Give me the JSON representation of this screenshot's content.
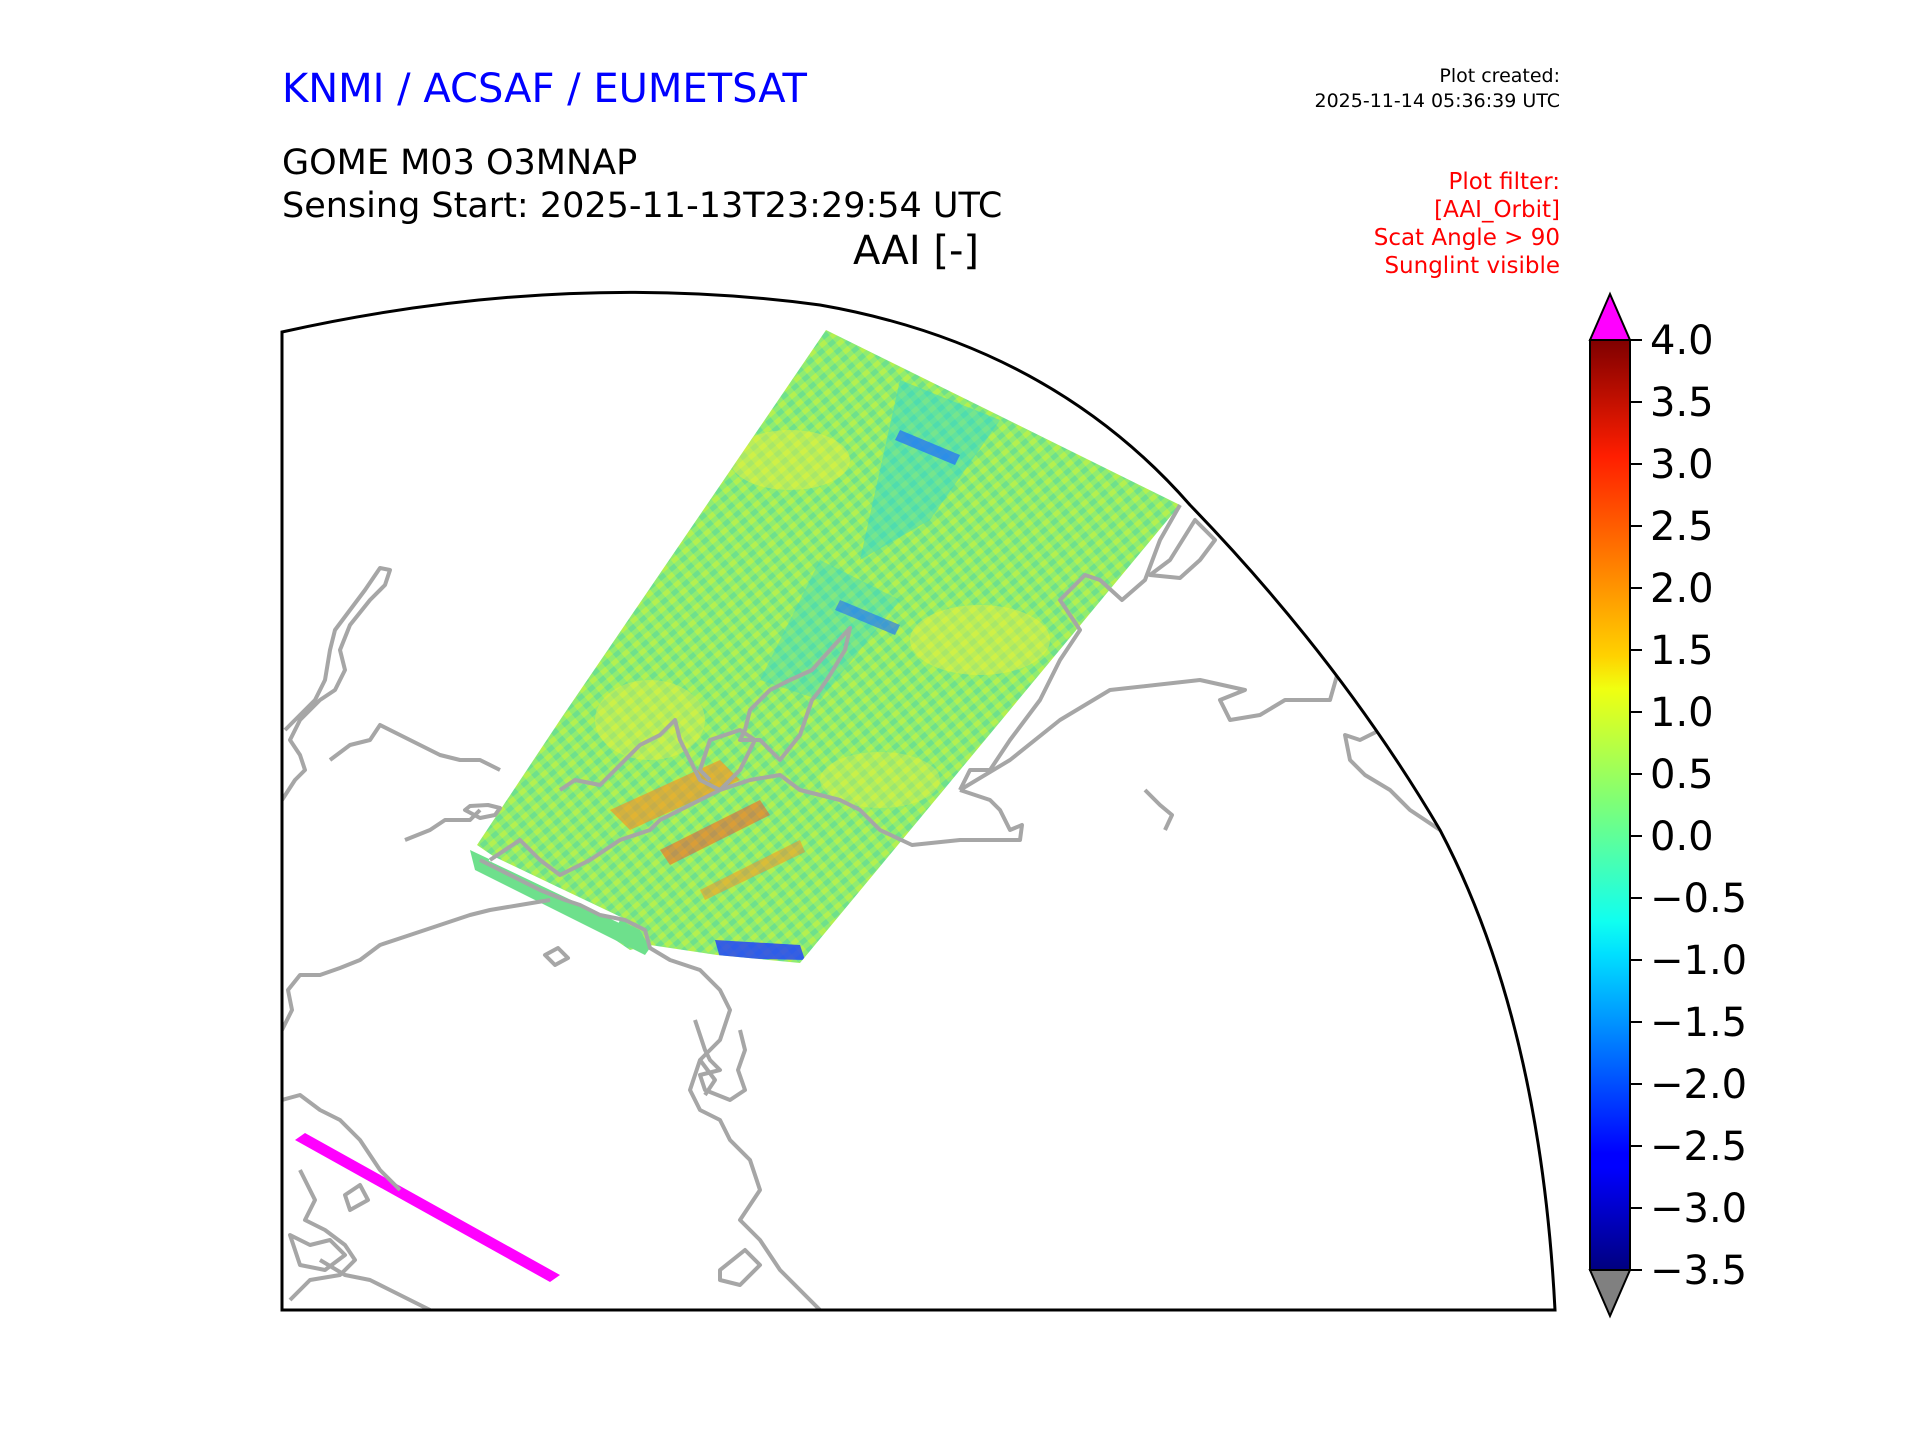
{
  "header": {
    "organization": "KNMI / ACSAF / EUMETSAT",
    "plot_created_label": "Plot created:",
    "plot_created_time": "2025-11-14 05:36:39 UTC",
    "product_title": "GOME M03 O3MNAP",
    "sensing_start": "Sensing Start: 2025-11-13T23:29:54 UTC",
    "variable_label": "AAI [-]"
  },
  "filter": {
    "lines": [
      "Plot filter:",
      "[AAI_Orbit]",
      "Scat Angle > 90",
      "Sunglint visible"
    ]
  },
  "colorbar": {
    "ticks": [
      "4.0",
      "3.5",
      "3.0",
      "2.5",
      "2.0",
      "1.5",
      "1.0",
      "0.5",
      "0.0",
      "−0.5",
      "−1.0",
      "−1.5",
      "−2.0",
      "−2.5",
      "−3.0",
      "−3.5"
    ],
    "min": -3.5,
    "max": 4.0,
    "over_color": "#ff00ff",
    "under_color": "#808080",
    "colormap": "jet"
  },
  "map": {
    "coastline_color": "#a6a6a6",
    "swath_typical_colors": [
      "#6ee08c",
      "#b4f050",
      "#2ad6d6",
      "#f0f03c",
      "#1e6cff"
    ],
    "out_of_range_color": "#ff00ff"
  }
}
